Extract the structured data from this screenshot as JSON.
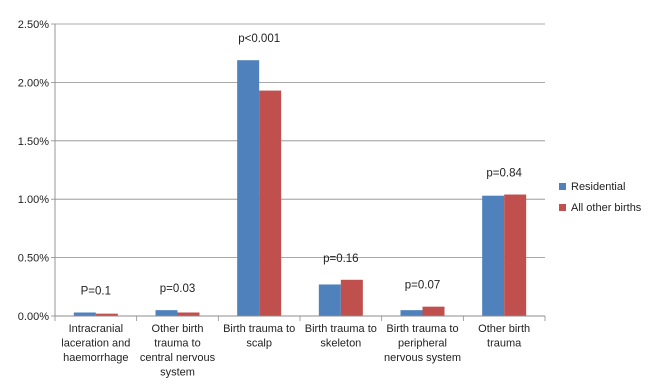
{
  "chart_data": {
    "type": "bar",
    "title": "",
    "xlabel": "",
    "ylabel": "",
    "ylim": [
      0,
      2.5
    ],
    "y_tick_labels": [
      "0.00%",
      "0.50%",
      "1.00%",
      "1.50%",
      "2.00%",
      "2.50%"
    ],
    "y_tick_values": [
      0,
      0.5,
      1.0,
      1.5,
      2.0,
      2.5
    ],
    "grid": true,
    "legend_position": "right",
    "categories": [
      [
        "Intracranial",
        "laceration and",
        "haemorrhage"
      ],
      [
        "Other birth",
        "trauma to",
        "central nervous",
        "system"
      ],
      [
        "Birth trauma to",
        "scalp"
      ],
      [
        "Birth trauma to",
        "skeleton"
      ],
      [
        "Birth trauma to",
        "peripheral",
        "nervous system"
      ],
      [
        "Other birth",
        "trauma"
      ]
    ],
    "series": [
      {
        "name": "Residential",
        "color": "#4F81BD",
        "values": [
          0.03,
          0.05,
          2.19,
          0.27,
          0.05,
          1.03
        ]
      },
      {
        "name": "All other births",
        "color": "#C0504D",
        "values": [
          0.02,
          0.03,
          1.93,
          0.31,
          0.08,
          1.04
        ]
      }
    ],
    "annotations": [
      "P=0.1",
      "p=0.03",
      "p<0.001",
      "p=0.16",
      "p=0.07",
      "p=0.84"
    ]
  }
}
